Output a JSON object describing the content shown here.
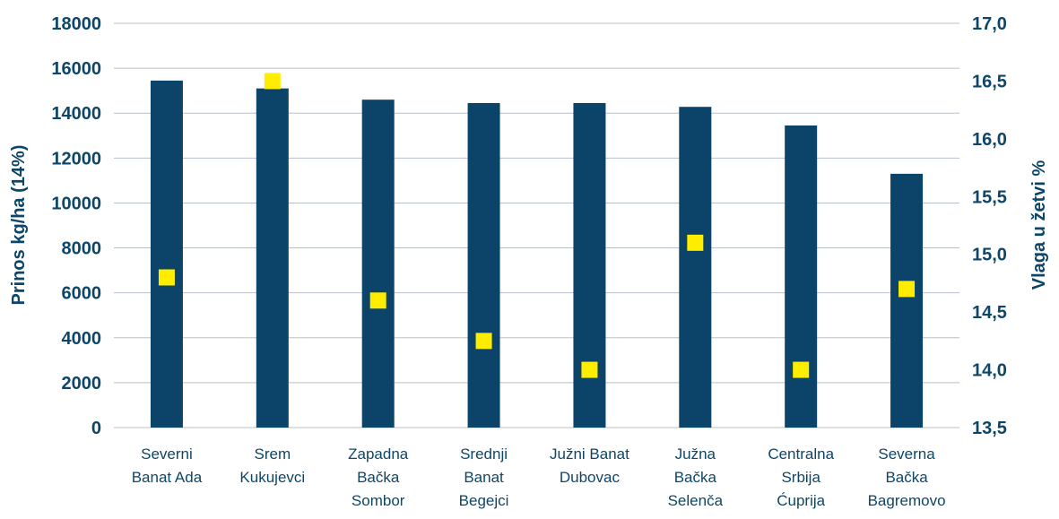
{
  "chart_data": {
    "type": "bar",
    "categories": [
      [
        "Severni",
        "Banat Ada"
      ],
      [
        "Srem",
        "Kukujevci"
      ],
      [
        "Zapadna",
        "Bačka",
        "Sombor"
      ],
      [
        "Srednji",
        "Banat",
        "Begejci"
      ],
      [
        "Južni Banat",
        "Dubovac"
      ],
      [
        "Južna",
        "Bačka",
        "Selenča"
      ],
      [
        "Centralna",
        "Srbija",
        "Ćuprija"
      ],
      [
        "Severna",
        "Bačka",
        "Bagremovo"
      ]
    ],
    "series": [
      {
        "axis": "left",
        "type": "bar",
        "values": [
          15450,
          15100,
          14600,
          14450,
          14450,
          14280,
          13450,
          11300
        ],
        "color": "#0b4468"
      },
      {
        "axis": "right",
        "type": "scatter",
        "values": [
          14.8,
          16.5,
          14.6,
          14.25,
          14.0,
          15.1,
          14.0,
          14.7
        ],
        "color": "#ffed00"
      }
    ],
    "ylabel": "Prinos kg/ha (14%)",
    "y2label": "Vlaga u žetvi %",
    "ylim": [
      0,
      18000
    ],
    "y2lim": [
      13.5,
      17.0
    ],
    "yticks": [
      "0",
      "2000",
      "4000",
      "6000",
      "8000",
      "10000",
      "12000",
      "14000",
      "16000",
      "18000"
    ],
    "y2ticks": [
      "13,5",
      "14,0",
      "14,5",
      "15,0",
      "15,5",
      "16,0",
      "16,5",
      "17,0"
    ],
    "grid": true,
    "legend": "none"
  }
}
